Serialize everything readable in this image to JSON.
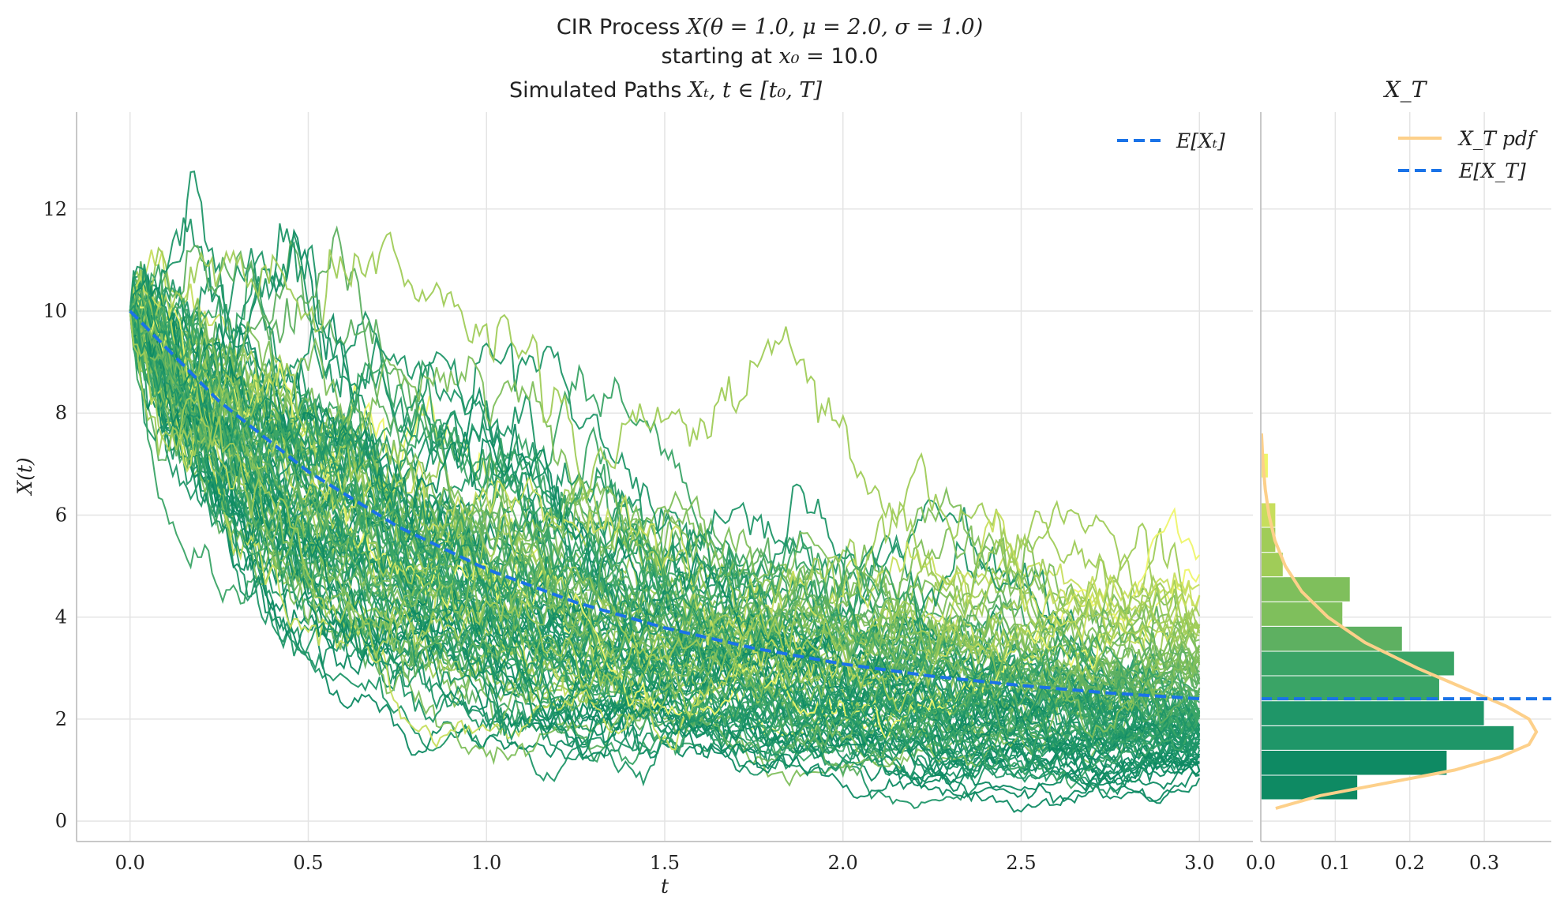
{
  "title_line1_prefix": "CIR Process",
  "title_line1_math": "X(θ = 1.0, μ = 2.0, σ = 1.0)",
  "title_line2_prefix": "starting at",
  "title_line2_math": "x₀ =",
  "title_line2_value": "10.0",
  "colors": {
    "mean_line": "#1a73e8",
    "pdf_line": "#fdd08a",
    "grid": "#e4e4e4",
    "axis": "#c8c8c8",
    "path_palette": [
      "#0e8a63",
      "#1f9668",
      "#3aa466",
      "#5eb061",
      "#7fbf5c",
      "#a0cc58",
      "#c7de5d",
      "#eef56a"
    ]
  },
  "chart_data": [
    {
      "type": "line",
      "title_prefix": "Simulated Paths",
      "title_math": "Xₜ, t ∈ [t₀, T]",
      "xlabel": "t",
      "ylabel": "X(t)",
      "xlim": [
        -0.15,
        3.15
      ],
      "ylim": [
        -0.4,
        13.9
      ],
      "xticks": [
        "0.0",
        "0.5",
        "1.0",
        "1.5",
        "2.0",
        "2.5",
        "3.0"
      ],
      "yticks": [
        "0",
        "2",
        "4",
        "6",
        "8",
        "10",
        "12"
      ],
      "grid": true,
      "legend_position": "top-right",
      "legend": [
        {
          "label": "E[Xₜ]",
          "style": "dashed"
        }
      ],
      "simulation": {
        "theta": 1.0,
        "mu": 2.0,
        "sigma": 1.0,
        "x0": 10.0,
        "T": 3.0,
        "paths": 100
      },
      "series": [
        {
          "name": "E[Xₜ]",
          "style": "dashed",
          "x": [
            0.0,
            0.25,
            0.5,
            0.75,
            1.0,
            1.25,
            1.5,
            1.75,
            2.0,
            2.25,
            2.5,
            2.75,
            3.0
          ],
          "y": [
            10.0,
            8.23,
            6.85,
            5.78,
            4.94,
            4.29,
            3.79,
            3.39,
            3.08,
            2.84,
            2.66,
            2.51,
            2.4
          ]
        }
      ]
    },
    {
      "type": "bar",
      "orientation": "horizontal",
      "title_math": "X_T",
      "xlim": [
        0.0,
        0.39
      ],
      "ylim": [
        -0.4,
        13.9
      ],
      "xticks": [
        "0.0",
        "0.1",
        "0.2",
        "0.3"
      ],
      "grid": true,
      "legend_position": "top-right",
      "legend": [
        {
          "label": "X_T pdf",
          "style": "solid"
        },
        {
          "label": "E[X_T]",
          "style": "dashed"
        }
      ],
      "bins": [
        {
          "lo": 0.42,
          "hi": 0.9,
          "density": 0.13
        },
        {
          "lo": 0.9,
          "hi": 1.39,
          "density": 0.25
        },
        {
          "lo": 1.39,
          "hi": 1.87,
          "density": 0.34
        },
        {
          "lo": 1.87,
          "hi": 2.36,
          "density": 0.3
        },
        {
          "lo": 2.36,
          "hi": 2.85,
          "density": 0.24
        },
        {
          "lo": 2.85,
          "hi": 3.33,
          "density": 0.26
        },
        {
          "lo": 3.33,
          "hi": 3.82,
          "density": 0.19
        },
        {
          "lo": 3.82,
          "hi": 4.3,
          "density": 0.11
        },
        {
          "lo": 4.3,
          "hi": 4.79,
          "density": 0.12
        },
        {
          "lo": 4.79,
          "hi": 5.27,
          "density": 0.03
        },
        {
          "lo": 5.27,
          "hi": 5.76,
          "density": 0.02
        },
        {
          "lo": 5.76,
          "hi": 6.24,
          "density": 0.02
        },
        {
          "lo": 6.24,
          "hi": 6.73,
          "density": 0.0
        },
        {
          "lo": 6.73,
          "hi": 7.21,
          "density": 0.01
        }
      ],
      "pdf": {
        "x": [
          0.25,
          0.5,
          0.75,
          1.0,
          1.25,
          1.5,
          1.75,
          2.0,
          2.25,
          2.5,
          2.75,
          3.0,
          3.5,
          4.0,
          4.5,
          5.0,
          5.5,
          6.0,
          6.5,
          7.0,
          7.6
        ],
        "density": [
          0.02,
          0.08,
          0.17,
          0.26,
          0.32,
          0.36,
          0.37,
          0.36,
          0.33,
          0.29,
          0.25,
          0.21,
          0.14,
          0.09,
          0.055,
          0.033,
          0.019,
          0.011,
          0.006,
          0.003,
          0.001
        ]
      },
      "mean": 2.4
    }
  ]
}
